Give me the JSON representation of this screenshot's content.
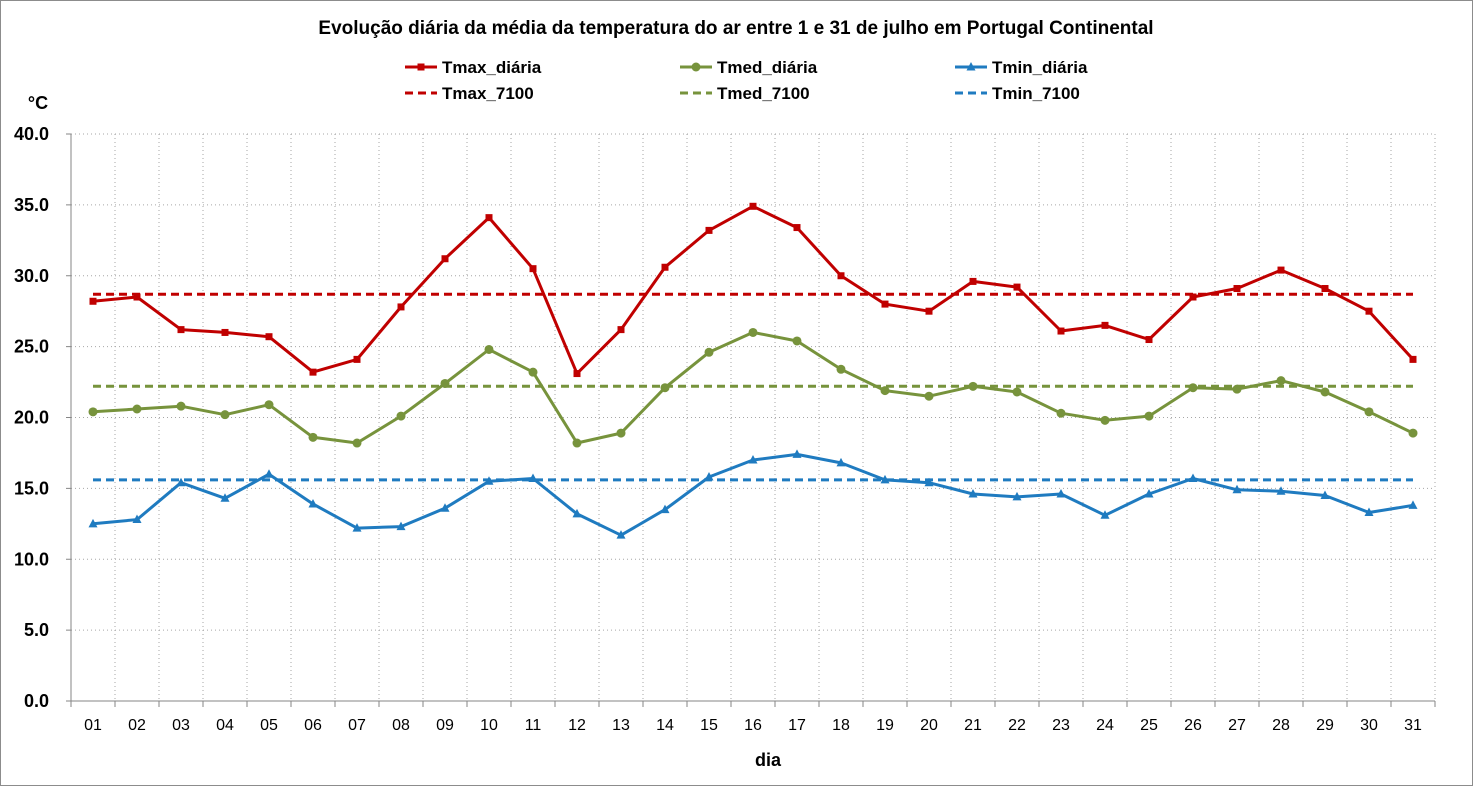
{
  "chart_data": {
    "type": "line",
    "title": "Evolução diária da média da temperatura do ar entre 1 e 31 de julho em Portugal Continental",
    "xlabel": "dia",
    "ylabel": "°C",
    "ylim": [
      0,
      40
    ],
    "yticks": [
      "0.0",
      "5.0",
      "10.0",
      "15.0",
      "20.0",
      "25.0",
      "30.0",
      "35.0",
      "40.0"
    ],
    "grid": true,
    "legend_position": "top",
    "categories": [
      "01",
      "02",
      "03",
      "04",
      "05",
      "06",
      "07",
      "08",
      "09",
      "10",
      "11",
      "12",
      "13",
      "14",
      "15",
      "16",
      "17",
      "18",
      "19",
      "20",
      "21",
      "22",
      "23",
      "24",
      "25",
      "26",
      "27",
      "28",
      "29",
      "30",
      "31"
    ],
    "series": [
      {
        "name": "Tmax_diária",
        "color": "#C00000",
        "style": "solid",
        "marker": "square",
        "values": [
          28.2,
          28.5,
          26.2,
          26.0,
          25.7,
          23.2,
          24.1,
          27.8,
          31.2,
          34.1,
          30.5,
          23.1,
          26.2,
          30.6,
          33.2,
          34.9,
          33.4,
          30.0,
          28.0,
          27.5,
          29.6,
          29.2,
          26.1,
          26.5,
          25.5,
          28.5,
          29.1,
          30.4,
          29.1,
          27.5,
          24.1
        ]
      },
      {
        "name": "Tmed_diária",
        "color": "#77933C",
        "style": "solid",
        "marker": "circle",
        "values": [
          20.4,
          20.6,
          20.8,
          20.2,
          20.9,
          18.6,
          18.2,
          20.1,
          22.4,
          24.8,
          23.2,
          18.2,
          18.9,
          22.1,
          24.6,
          26.0,
          25.4,
          23.4,
          21.9,
          21.5,
          22.2,
          21.8,
          20.3,
          19.8,
          20.1,
          22.1,
          22.0,
          22.6,
          21.8,
          20.4,
          18.9
        ]
      },
      {
        "name": "Tmin_diária",
        "color": "#1F7BC0",
        "style": "solid",
        "marker": "triangle",
        "values": [
          12.5,
          12.8,
          15.4,
          14.3,
          16.0,
          13.9,
          12.2,
          12.3,
          13.6,
          15.5,
          15.7,
          13.2,
          11.7,
          13.5,
          15.8,
          17.0,
          17.4,
          16.8,
          15.6,
          15.4,
          14.6,
          14.4,
          14.6,
          13.1,
          14.6,
          15.7,
          14.9,
          14.8,
          14.5,
          13.3,
          13.8
        ]
      },
      {
        "name": "Tmax_7100",
        "color": "#C00000",
        "style": "dashed",
        "values": [
          28.7,
          28.7,
          28.7,
          28.7,
          28.7,
          28.7,
          28.7,
          28.7,
          28.7,
          28.7,
          28.7,
          28.7,
          28.7,
          28.7,
          28.7,
          28.7,
          28.7,
          28.7,
          28.7,
          28.7,
          28.7,
          28.7,
          28.7,
          28.7,
          28.7,
          28.7,
          28.7,
          28.7,
          28.7,
          28.7,
          28.7
        ]
      },
      {
        "name": "Tmed_7100",
        "color": "#77933C",
        "style": "dashed",
        "values": [
          22.2,
          22.2,
          22.2,
          22.2,
          22.2,
          22.2,
          22.2,
          22.2,
          22.2,
          22.2,
          22.2,
          22.2,
          22.2,
          22.2,
          22.2,
          22.2,
          22.2,
          22.2,
          22.2,
          22.2,
          22.2,
          22.2,
          22.2,
          22.2,
          22.2,
          22.2,
          22.2,
          22.2,
          22.2,
          22.2,
          22.2
        ]
      },
      {
        "name": "Tmin_7100",
        "color": "#1F7BC0",
        "style": "dashed",
        "values": [
          15.6,
          15.6,
          15.6,
          15.6,
          15.6,
          15.6,
          15.6,
          15.6,
          15.6,
          15.6,
          15.6,
          15.6,
          15.6,
          15.6,
          15.6,
          15.6,
          15.6,
          15.6,
          15.6,
          15.6,
          15.6,
          15.6,
          15.6,
          15.6,
          15.6,
          15.6,
          15.6,
          15.6,
          15.6,
          15.6,
          15.6
        ]
      }
    ],
    "legend": [
      {
        "name": "Tmax_diária",
        "color": "#C00000",
        "style": "solid",
        "marker": "square"
      },
      {
        "name": "Tmed_diária",
        "color": "#77933C",
        "style": "solid",
        "marker": "circle"
      },
      {
        "name": "Tmin_diária",
        "color": "#1F7BC0",
        "style": "solid",
        "marker": "triangle"
      },
      {
        "name": "Tmax_7100",
        "color": "#C00000",
        "style": "dashed"
      },
      {
        "name": "Tmed_7100",
        "color": "#77933C",
        "style": "dashed"
      },
      {
        "name": "Tmin_7100",
        "color": "#1F7BC0",
        "style": "dashed"
      }
    ]
  }
}
